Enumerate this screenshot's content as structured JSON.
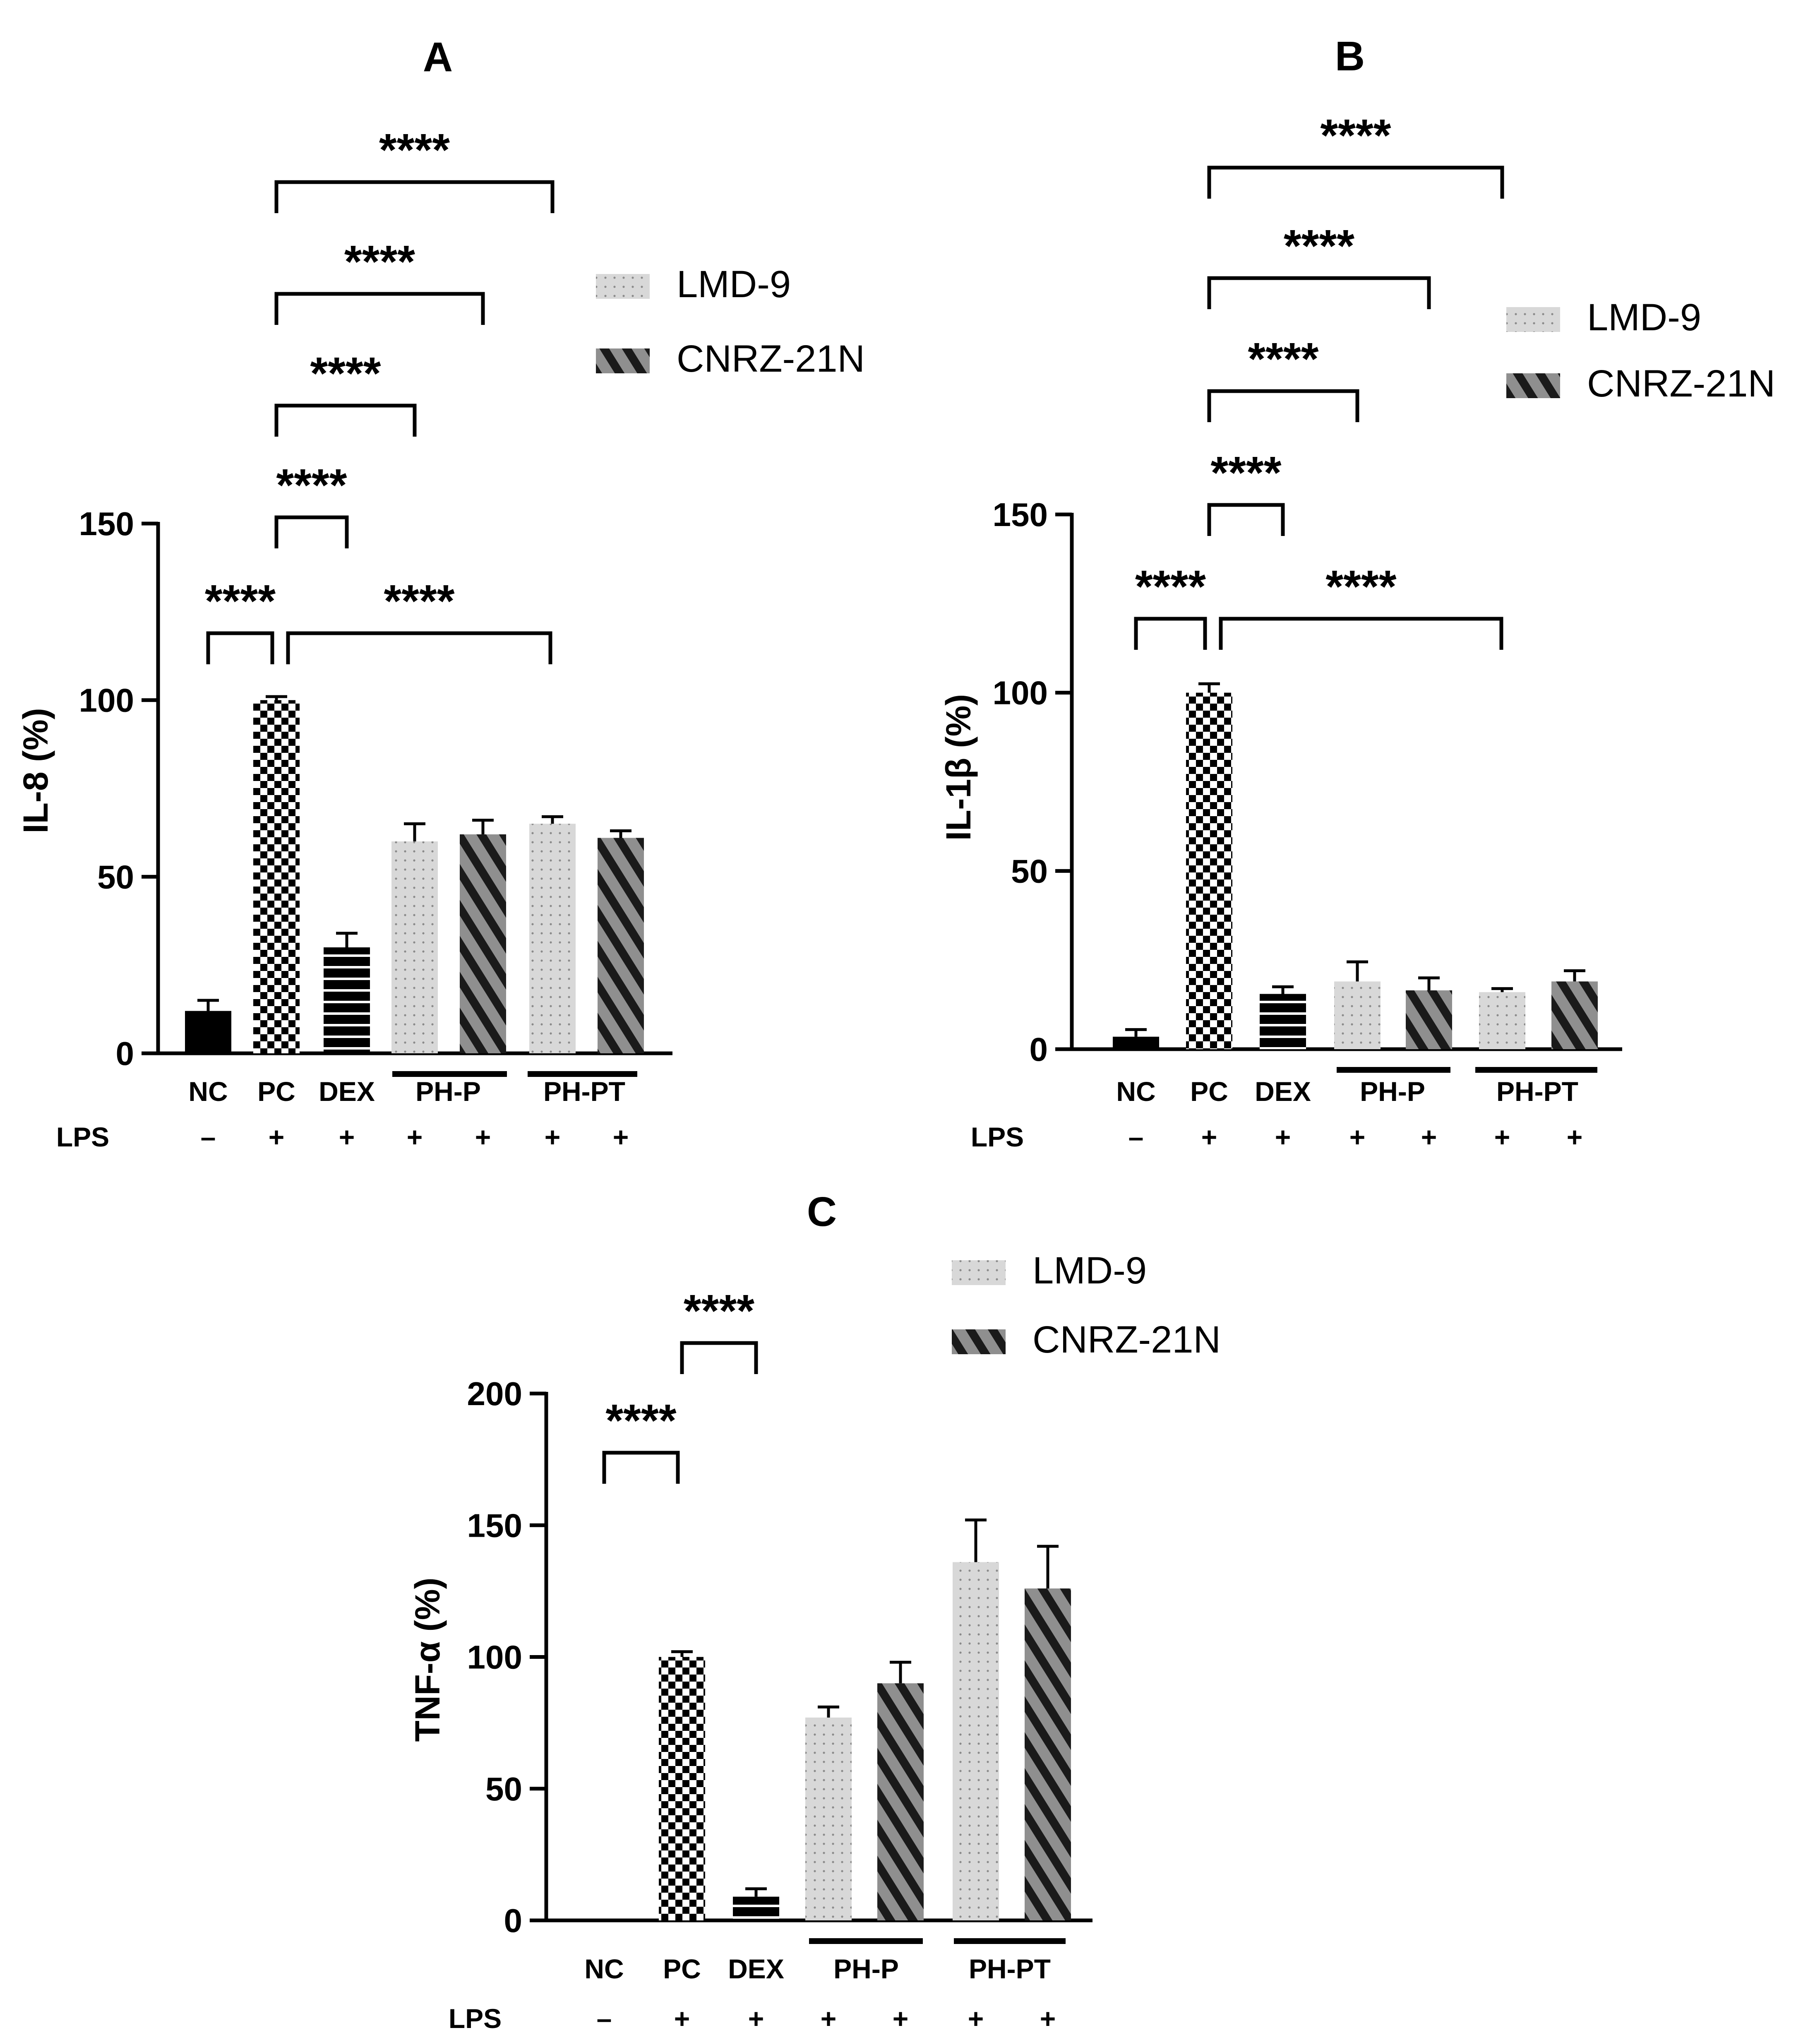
{
  "chart_data": [
    {
      "type": "bar",
      "panel_label": "A",
      "ylabel": "IL-8 (%)",
      "ylim": [
        0,
        150
      ],
      "yticks": [
        0,
        50,
        100,
        150
      ],
      "categories": [
        "NC",
        "PC",
        "DEX",
        "PH-P",
        "PH-P",
        "PH-PT",
        "PH-PT"
      ],
      "values": [
        12,
        100,
        30,
        60,
        62,
        65,
        61
      ],
      "errors": [
        3,
        1,
        4,
        5,
        4,
        2,
        2
      ],
      "fills": [
        "solid",
        "checker",
        "hstripe",
        "dots",
        "diag",
        "dots",
        "diag"
      ],
      "x_labels": [
        "NC",
        "PC",
        "DEX",
        "PH-P",
        "PH-PT"
      ],
      "lps_label": "LPS",
      "lps": [
        "–",
        "+",
        "+",
        "+",
        "+",
        "+",
        "+"
      ],
      "legend": [
        "LMD-9",
        "CNRZ-21N"
      ],
      "legend_placement": "top-right",
      "significance": [
        {
          "from": 0,
          "to": 1,
          "label": "****"
        },
        {
          "from": 1,
          "to_group": [
            2,
            6
          ],
          "label": "****"
        },
        {
          "from": 1,
          "to": 2,
          "label": "****"
        },
        {
          "from": 1,
          "to": 3,
          "label": "****"
        },
        {
          "from": 1,
          "to": 4,
          "label": "****"
        },
        {
          "from": 1,
          "to": 5,
          "label": "****"
        }
      ]
    },
    {
      "type": "bar",
      "panel_label": "B",
      "ylabel": "IL-1β (%)",
      "ylim": [
        0,
        150
      ],
      "yticks": [
        0,
        50,
        100,
        150
      ],
      "categories": [
        "NC",
        "PC",
        "DEX",
        "PH-P",
        "PH-P",
        "PH-PT",
        "PH-PT"
      ],
      "values": [
        3.5,
        100,
        15.5,
        19,
        16.5,
        16,
        19
      ],
      "errors": [
        2,
        2.5,
        2,
        5.5,
        3.5,
        1,
        3
      ],
      "fills": [
        "solid",
        "checker",
        "hstripe",
        "dots",
        "diag",
        "dots",
        "diag"
      ],
      "x_labels": [
        "NC",
        "PC",
        "DEX",
        "PH-P",
        "PH-PT"
      ],
      "lps_label": "LPS",
      "lps": [
        "–",
        "+",
        "+",
        "+",
        "+",
        "+",
        "+"
      ],
      "legend": [
        "LMD-9",
        "CNRZ-21N"
      ],
      "legend_placement": "top-right",
      "significance": [
        {
          "from": 0,
          "to": 1,
          "label": "****"
        },
        {
          "from": 1,
          "to_group": [
            2,
            6
          ],
          "label": "****"
        },
        {
          "from": 1,
          "to": 2,
          "label": "****"
        },
        {
          "from": 1,
          "to": 3,
          "label": "****"
        },
        {
          "from": 1,
          "to": 4,
          "label": "****"
        },
        {
          "from": 1,
          "to": 5,
          "label": "****"
        }
      ]
    },
    {
      "type": "bar",
      "panel_label": "C",
      "ylabel": "TNF-α (%)",
      "ylim": [
        0,
        200
      ],
      "yticks": [
        0,
        50,
        100,
        150,
        200
      ],
      "categories": [
        "NC",
        "PC",
        "DEX",
        "PH-P",
        "PH-P",
        "PH-PT",
        "PH-PT"
      ],
      "values": [
        0,
        100,
        9,
        77,
        90,
        136,
        126
      ],
      "errors": [
        0,
        2,
        3,
        4,
        8,
        16,
        16
      ],
      "fills": [
        "solid",
        "checker",
        "hstripe",
        "dots",
        "diag",
        "dots",
        "diag"
      ],
      "x_labels": [
        "NC",
        "PC",
        "DEX",
        "PH-P",
        "PH-PT"
      ],
      "lps_label": "LPS",
      "lps": [
        "–",
        "+",
        "+",
        "+",
        "+",
        "+",
        "+"
      ],
      "legend": [
        "LMD-9",
        "CNRZ-21N"
      ],
      "legend_placement": "top-right",
      "significance": [
        {
          "from": 0,
          "to": 1,
          "label": "****"
        },
        {
          "from": 1,
          "to": 2,
          "label": "****"
        }
      ]
    }
  ],
  "colors": {
    "solid": "#000000",
    "lmd9": "#d6d6d6",
    "cnrz": "#8f8f8f",
    "dot": "#9a9a9a",
    "stripe": "#1a1a1a"
  },
  "icons": {
    "legend_lmd9": "dotted-light-gray-swatch",
    "legend_cnrz": "striped-dark-gray-swatch"
  }
}
